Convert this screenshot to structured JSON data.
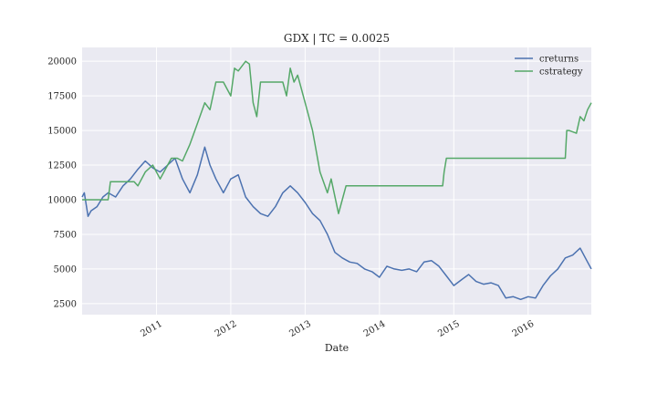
{
  "chart_data": {
    "type": "line",
    "title": "GDX | TC = 0.0025",
    "xlabel": "Date",
    "ylabel": "",
    "xlim": [
      2010.0,
      2016.85
    ],
    "ylim": [
      1700,
      21000
    ],
    "x_ticks": [
      2011,
      2012,
      2013,
      2014,
      2015,
      2016
    ],
    "x_tick_labels": [
      "2011",
      "2012",
      "2013",
      "2014",
      "2015",
      "2016"
    ],
    "y_ticks": [
      2500,
      5000,
      7500,
      10000,
      12500,
      15000,
      17500,
      20000
    ],
    "y_tick_labels": [
      "2500",
      "5000",
      "7500",
      "10000",
      "12500",
      "15000",
      "17500",
      "20000"
    ],
    "grid": true,
    "legend_position": "top-right",
    "colors": {
      "creturns": "#4c72b0",
      "cstrategy": "#55a868",
      "plot_bg": "#eaeaf2",
      "grid": "#ffffff"
    },
    "series": [
      {
        "name": "creturns",
        "x": [
          2010.0,
          2010.03,
          2010.08,
          2010.12,
          2010.2,
          2010.28,
          2010.35,
          2010.45,
          2010.55,
          2010.65,
          2010.75,
          2010.85,
          2010.95,
          2011.05,
          2011.15,
          2011.25,
          2011.35,
          2011.45,
          2011.55,
          2011.65,
          2011.72,
          2011.8,
          2011.9,
          2012.0,
          2012.1,
          2012.2,
          2012.3,
          2012.4,
          2012.5,
          2012.6,
          2012.7,
          2012.8,
          2012.9,
          2013.0,
          2013.1,
          2013.2,
          2013.3,
          2013.4,
          2013.5,
          2013.6,
          2013.7,
          2013.8,
          2013.9,
          2014.0,
          2014.1,
          2014.2,
          2014.3,
          2014.4,
          2014.5,
          2014.6,
          2014.7,
          2014.8,
          2014.9,
          2015.0,
          2015.1,
          2015.2,
          2015.3,
          2015.4,
          2015.5,
          2015.6,
          2015.7,
          2015.8,
          2015.9,
          2016.0,
          2016.1,
          2016.2,
          2016.3,
          2016.4,
          2016.5,
          2016.6,
          2016.7,
          2016.8,
          2016.85
        ],
        "values": [
          10200,
          10500,
          8800,
          9200,
          9500,
          10200,
          10500,
          10200,
          11000,
          11500,
          12200,
          12800,
          12300,
          12000,
          12500,
          13000,
          11500,
          10500,
          11800,
          13800,
          12500,
          11500,
          10500,
          11500,
          11800,
          10200,
          9500,
          9000,
          8800,
          9500,
          10500,
          11000,
          10500,
          9800,
          9000,
          8500,
          7500,
          6200,
          5800,
          5500,
          5400,
          5000,
          4800,
          4400,
          5200,
          5000,
          4900,
          5000,
          4800,
          5500,
          5600,
          5200,
          4500,
          3800,
          4200,
          4600,
          4100,
          3900,
          4000,
          3800,
          2900,
          3000,
          2800,
          3000,
          2900,
          3800,
          4500,
          5000,
          5800,
          6000,
          6500,
          5500,
          5000
        ]
      },
      {
        "name": "cstrategy",
        "x": [
          2010.0,
          2010.05,
          2010.35,
          2010.38,
          2010.7,
          2010.75,
          2010.85,
          2010.95,
          2011.05,
          2011.1,
          2011.2,
          2011.28,
          2011.35,
          2011.45,
          2011.55,
          2011.65,
          2011.72,
          2011.8,
          2011.85,
          2011.9,
          2012.0,
          2012.05,
          2012.1,
          2012.2,
          2012.25,
          2012.3,
          2012.35,
          2012.4,
          2012.45,
          2012.7,
          2012.75,
          2012.8,
          2012.85,
          2012.9,
          2012.95,
          2013.0,
          2013.05,
          2013.1,
          2013.2,
          2013.3,
          2013.35,
          2013.45,
          2013.5,
          2013.55,
          2013.6,
          2014.85,
          2014.87,
          2014.9,
          2016.5,
          2016.52,
          2016.55,
          2016.65,
          2016.7,
          2016.75,
          2016.8,
          2016.85
        ],
        "values": [
          10000,
          10000,
          10000,
          11300,
          11300,
          11000,
          12000,
          12500,
          11500,
          12000,
          13000,
          13000,
          12800,
          14000,
          15500,
          17000,
          16500,
          18500,
          18500,
          18500,
          17500,
          19500,
          19300,
          20000,
          19800,
          17000,
          16000,
          18500,
          18500,
          18500,
          17500,
          19500,
          18500,
          19000,
          18000,
          17000,
          16000,
          15000,
          12000,
          10500,
          11500,
          9000,
          10000,
          11000,
          11000,
          11000,
          12000,
          13000,
          13000,
          15000,
          15000,
          14800,
          16000,
          15700,
          16500,
          17000
        ]
      }
    ]
  }
}
